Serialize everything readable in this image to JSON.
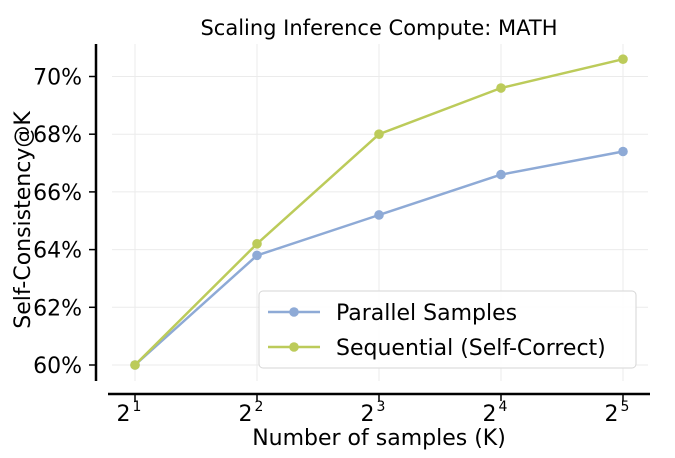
{
  "chart_data": {
    "type": "line",
    "title": "Scaling Inference Compute: MATH",
    "xlabel": "Number of samples (K)",
    "ylabel": "Self-Consistency@K",
    "x": [
      2,
      4,
      8,
      16,
      32
    ],
    "x_tick_labels": [
      {
        "base": "2",
        "exp": "1"
      },
      {
        "base": "2",
        "exp": "2"
      },
      {
        "base": "2",
        "exp": "3"
      },
      {
        "base": "2",
        "exp": "4"
      },
      {
        "base": "2",
        "exp": "5"
      }
    ],
    "x_scale": "log2",
    "y_ticks": [
      60,
      62,
      64,
      66,
      68,
      70
    ],
    "y_tick_labels": [
      "60%",
      "62%",
      "64%",
      "66%",
      "68%",
      "70%"
    ],
    "ylim": [
      59.5,
      71.2
    ],
    "grid": true,
    "legend_position": "lower-right",
    "series": [
      {
        "name": "Parallel Samples",
        "color": "#8eaad6",
        "values": [
          60.0,
          63.8,
          65.2,
          66.6,
          67.4
        ]
      },
      {
        "name": "Sequential (Self-Correct)",
        "color": "#bccb5a",
        "values": [
          60.0,
          64.2,
          68.0,
          69.6,
          70.6
        ]
      }
    ]
  }
}
